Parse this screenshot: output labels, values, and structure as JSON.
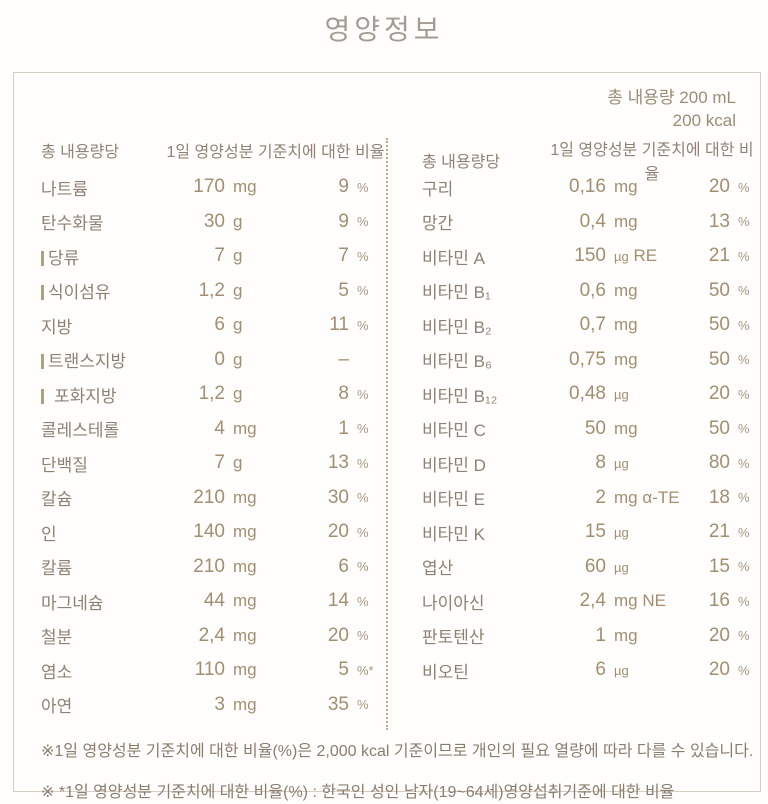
{
  "title": "영양정보",
  "palette": {
    "title_color": "#a49b92",
    "label_color": "#8e8173",
    "value_color": "#a28e71",
    "box_border": "#d5cec1",
    "divider_dotted": "#b9aa8c",
    "background": "#fffefc"
  },
  "serving": {
    "volume": "총 내용량 200 mL",
    "calories": "200 kcal"
  },
  "columns": [
    {
      "header": {
        "amount_label": "총 내용량당",
        "dv_label": "1일 영양성분 기준치에 대한 비율"
      },
      "rows": [
        {
          "name": "나트륨",
          "sub": false,
          "amount": "170",
          "unit": "mg",
          "dv": "9",
          "dvSign": "%"
        },
        {
          "name": "탄수화물",
          "sub": false,
          "amount": "30",
          "unit": "g",
          "dv": "9",
          "dvSign": "%"
        },
        {
          "name": "당류",
          "sub": true,
          "amount": "7",
          "unit": "g",
          "dv": "7",
          "dvSign": "%"
        },
        {
          "name": "식이섬유",
          "sub": true,
          "amount": "1,2",
          "unit": "g",
          "dv": "5",
          "dvSign": "%"
        },
        {
          "name": "지방",
          "sub": false,
          "amount": "6",
          "unit": "g",
          "dv": "11",
          "dvSign": "%"
        },
        {
          "name": "트랜스지방",
          "sub": true,
          "amount": "0",
          "unit": "g",
          "dv": "–",
          "dvSign": ""
        },
        {
          "name": "포화지방",
          "sub": true,
          "subGap": true,
          "amount": "1,2",
          "unit": "g",
          "dv": "8",
          "dvSign": "%"
        },
        {
          "name": "콜레스테롤",
          "sub": false,
          "amount": "4",
          "unit": "mg",
          "dv": "1",
          "dvSign": "%"
        },
        {
          "name": "단백질",
          "sub": false,
          "amount": "7",
          "unit": "g",
          "dv": "13",
          "dvSign": "%"
        },
        {
          "name": "칼슘",
          "sub": false,
          "amount": "210",
          "unit": "mg",
          "dv": "30",
          "dvSign": "%"
        },
        {
          "name": "인",
          "sub": false,
          "amount": "140",
          "unit": "mg",
          "dv": "20",
          "dvSign": "%"
        },
        {
          "name": "칼륨",
          "sub": false,
          "amount": "210",
          "unit": "mg",
          "dv": "6",
          "dvSign": "%"
        },
        {
          "name": "마그네슘",
          "sub": false,
          "amount": "44",
          "unit": "mg",
          "dv": "14",
          "dvSign": "%"
        },
        {
          "name": "철분",
          "sub": false,
          "amount": "2,4",
          "unit": "mg",
          "dv": "20",
          "dvSign": "%"
        },
        {
          "name": "염소",
          "sub": false,
          "amount": "110",
          "unit": "mg",
          "dv": "5",
          "dvSign": "%*"
        },
        {
          "name": "아연",
          "sub": false,
          "amount": "3",
          "unit": "mg",
          "dv": "35",
          "dvSign": "%"
        }
      ]
    },
    {
      "header": {
        "amount_label": "총 내용량당",
        "dv_label": "1일 영양성분 기준치에 대한 비율"
      },
      "rows": [
        {
          "name": "구리",
          "sub": false,
          "amount": "0,16",
          "unit": "mg",
          "dv": "20",
          "dvSign": "%"
        },
        {
          "name": "망간",
          "sub": false,
          "amount": "0,4",
          "unit": "mg",
          "dv": "13",
          "dvSign": "%"
        },
        {
          "name": "비타민 A",
          "sub": false,
          "amount": "150",
          "unit": "µg RE",
          "dv": "21",
          "dvSign": "%"
        },
        {
          "name": "비타민 B₁",
          "sub": false,
          "amount": "0,6",
          "unit": "mg",
          "dv": "50",
          "dvSign": "%"
        },
        {
          "name": "비타민 B₂",
          "sub": false,
          "amount": "0,7",
          "unit": "mg",
          "dv": "50",
          "dvSign": "%"
        },
        {
          "name": "비타민 B₆",
          "sub": false,
          "amount": "0,75",
          "unit": "mg",
          "dv": "50",
          "dvSign": "%"
        },
        {
          "name": "비타민 B₁₂",
          "sub": false,
          "amount": "0,48",
          "unit": "µg",
          "dv": "20",
          "dvSign": "%"
        },
        {
          "name": "비타민 C",
          "sub": false,
          "amount": "50",
          "unit": "mg",
          "dv": "50",
          "dvSign": "%"
        },
        {
          "name": "비타민 D",
          "sub": false,
          "amount": "8",
          "unit": "µg",
          "dv": "80",
          "dvSign": "%"
        },
        {
          "name": "비타민 E",
          "sub": false,
          "amount": "2",
          "unit": "mg α-TE",
          "dv": "18",
          "dvSign": "%"
        },
        {
          "name": "비타민 K",
          "sub": false,
          "amount": "15",
          "unit": "µg",
          "dv": "21",
          "dvSign": "%"
        },
        {
          "name": "엽산",
          "sub": false,
          "amount": "60",
          "unit": "µg",
          "dv": "15",
          "dvSign": "%"
        },
        {
          "name": "나이아신",
          "sub": false,
          "amount": "2,4",
          "unit": "mg NE",
          "dv": "16",
          "dvSign": "%"
        },
        {
          "name": "판토텐산",
          "sub": false,
          "amount": "1",
          "unit": "mg",
          "dv": "20",
          "dvSign": "%"
        },
        {
          "name": "비오틴",
          "sub": false,
          "amount": "6",
          "unit": "µg",
          "dv": "20",
          "dvSign": "%"
        }
      ]
    }
  ],
  "footnotes": [
    "※1일 영양성분 기준치에 대한 비율(%)은 2,000 kcal 기준이므로 개인의 필요 열량에 따라 다를 수 있습니다.",
    "※ *1일 영양성분 기준치에 대한 비율(%) : 한국인 성인 남자(19~64세)영양섭취기준에 대한 비율"
  ]
}
